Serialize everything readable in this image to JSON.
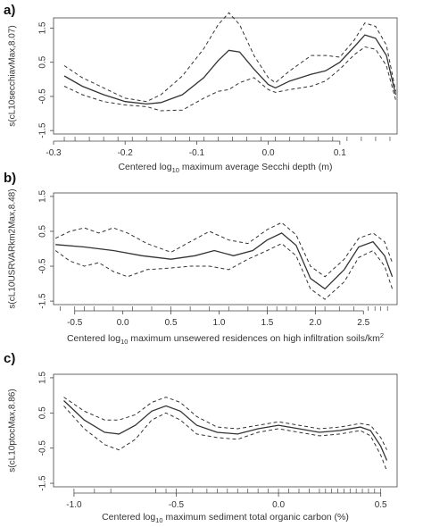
{
  "chart_data": [
    {
      "type": "line",
      "panel_label": "a)",
      "xlabel_parts": {
        "pre": "Centered log",
        "sub": "10",
        "post": " maximum average Secchi depth (m)"
      },
      "ylabel": "s(cL10secchiavMax,8.07)",
      "xlim": [
        -0.3,
        0.18
      ],
      "ylim": [
        -1.6,
        1.8
      ],
      "xticks": [
        -0.3,
        -0.2,
        -0.1,
        0.0,
        0.1
      ],
      "xtick_labels": [
        "-0.3",
        "-0.2",
        "-0.1",
        "0.0",
        "0.1"
      ],
      "yticks": [
        -1.5,
        -0.5,
        0.5,
        1.5
      ],
      "ytick_labels": [
        "-1.5",
        "-0.5",
        "0.5",
        "1.5"
      ],
      "series": [
        {
          "role": "fit",
          "x": [
            -0.285,
            -0.26,
            -0.23,
            -0.2,
            -0.17,
            -0.15,
            -0.12,
            -0.09,
            -0.07,
            -0.055,
            -0.04,
            -0.02,
            0.0,
            0.01,
            0.03,
            0.06,
            0.08,
            0.1,
            0.12,
            0.135,
            0.15,
            0.165,
            0.178
          ],
          "y": [
            0.1,
            -0.2,
            -0.45,
            -0.65,
            -0.72,
            -0.68,
            -0.45,
            0.05,
            0.55,
            0.85,
            0.8,
            0.3,
            -0.15,
            -0.25,
            -0.05,
            0.15,
            0.25,
            0.5,
            0.95,
            1.3,
            1.2,
            0.7,
            -0.45
          ]
        },
        {
          "role": "upper",
          "x": [
            -0.285,
            -0.26,
            -0.23,
            -0.2,
            -0.17,
            -0.15,
            -0.12,
            -0.09,
            -0.07,
            -0.055,
            -0.04,
            -0.02,
            0.0,
            0.01,
            0.03,
            0.06,
            0.08,
            0.1,
            0.12,
            0.135,
            0.15,
            0.165,
            0.178
          ],
          "y": [
            0.4,
            0.05,
            -0.25,
            -0.55,
            -0.65,
            -0.45,
            0.1,
            0.9,
            1.6,
            1.95,
            1.6,
            0.7,
            0.05,
            -0.1,
            0.25,
            0.7,
            0.7,
            0.65,
            1.15,
            1.65,
            1.55,
            1.0,
            -0.35
          ]
        },
        {
          "role": "lower",
          "x": [
            -0.285,
            -0.26,
            -0.23,
            -0.2,
            -0.17,
            -0.15,
            -0.12,
            -0.09,
            -0.07,
            -0.055,
            -0.04,
            -0.02,
            0.0,
            0.01,
            0.03,
            0.06,
            0.08,
            0.1,
            0.12,
            0.135,
            0.15,
            0.165,
            0.178
          ],
          "y": [
            -0.2,
            -0.45,
            -0.65,
            -0.75,
            -0.8,
            -0.92,
            -0.9,
            -0.55,
            -0.35,
            -0.3,
            -0.1,
            0.05,
            -0.3,
            -0.38,
            -0.3,
            -0.2,
            -0.05,
            0.3,
            0.72,
            0.95,
            0.88,
            0.4,
            -0.6
          ]
        }
      ],
      "rug": [
        -0.285,
        -0.27,
        -0.25,
        -0.23,
        -0.21,
        -0.19,
        -0.17,
        -0.15,
        -0.13,
        -0.11,
        -0.09,
        -0.07,
        -0.05,
        -0.03,
        -0.01,
        0.01,
        0.03,
        0.05,
        0.07,
        0.09,
        0.11,
        0.13,
        0.15,
        0.17
      ]
    },
    {
      "type": "line",
      "panel_label": "b)",
      "xlabel_parts": {
        "pre": "Centered log",
        "sub": "10",
        "post": " maximum unsewered residences on high infiltration soils/km",
        "sup": "2"
      },
      "ylabel": "s(cL10USRVARkm2Max,8.48)",
      "xlim": [
        -0.72,
        2.85
      ],
      "ylim": [
        -1.6,
        1.6
      ],
      "xticks": [
        -0.5,
        0.0,
        0.5,
        1.0,
        1.5,
        2.0,
        2.5
      ],
      "xtick_labels": [
        "-0.5",
        "0.0",
        "0.5",
        "1.0",
        "1.5",
        "2.0",
        "2.5"
      ],
      "yticks": [
        -1.5,
        -0.5,
        0.5,
        1.5
      ],
      "ytick_labels": [
        "-1.5",
        "-0.5",
        "0.5",
        "1.5"
      ],
      "series": [
        {
          "role": "fit",
          "x": [
            -0.7,
            -0.4,
            -0.1,
            0.2,
            0.5,
            0.75,
            0.95,
            1.15,
            1.35,
            1.5,
            1.65,
            1.8,
            1.95,
            2.1,
            2.3,
            2.45,
            2.6,
            2.72,
            2.8
          ],
          "y": [
            0.12,
            0.05,
            -0.05,
            -0.2,
            -0.3,
            -0.2,
            -0.05,
            -0.2,
            -0.05,
            0.25,
            0.45,
            0.1,
            -0.85,
            -1.15,
            -0.6,
            0.05,
            0.2,
            -0.2,
            -0.8
          ]
        },
        {
          "role": "upper",
          "x": [
            -0.7,
            -0.55,
            -0.4,
            -0.25,
            -0.1,
            0.05,
            0.25,
            0.5,
            0.7,
            0.9,
            1.1,
            1.3,
            1.5,
            1.65,
            1.8,
            1.95,
            2.1,
            2.3,
            2.45,
            2.6,
            2.72,
            2.8
          ],
          "y": [
            0.3,
            0.5,
            0.6,
            0.45,
            0.6,
            0.45,
            0.15,
            -0.1,
            0.2,
            0.5,
            0.25,
            0.15,
            0.55,
            0.75,
            0.4,
            -0.5,
            -0.8,
            -0.3,
            0.3,
            0.45,
            0.2,
            -0.4
          ]
        },
        {
          "role": "lower",
          "x": [
            -0.7,
            -0.55,
            -0.4,
            -0.25,
            -0.1,
            0.05,
            0.25,
            0.5,
            0.7,
            0.9,
            1.1,
            1.3,
            1.5,
            1.65,
            1.8,
            1.95,
            2.1,
            2.3,
            2.45,
            2.6,
            2.72,
            2.8
          ],
          "y": [
            -0.05,
            -0.35,
            -0.5,
            -0.4,
            -0.65,
            -0.8,
            -0.6,
            -0.55,
            -0.5,
            -0.5,
            -0.6,
            -0.3,
            -0.05,
            0.15,
            -0.2,
            -1.15,
            -1.45,
            -0.95,
            -0.25,
            -0.05,
            -0.5,
            -1.15
          ]
        }
      ],
      "rug": [
        -0.65,
        -0.5,
        -0.4,
        -0.3,
        -0.1,
        0.1,
        0.3,
        0.5,
        0.7,
        0.9,
        1.1,
        1.3,
        1.5,
        1.6,
        1.7,
        1.8,
        2.0,
        2.1,
        2.25,
        2.4,
        2.55,
        2.62,
        2.68,
        2.75
      ]
    },
    {
      "type": "line",
      "panel_label": "c)",
      "xlabel_parts": {
        "pre": "Centered log",
        "sub": "10",
        "post": " maximum sediment total organic carbon (%)"
      },
      "ylabel": "s(cL10ptocMax,8.86)",
      "xlim": [
        -1.1,
        0.58
      ],
      "ylim": [
        -1.6,
        1.6
      ],
      "xticks": [
        -1.0,
        -0.5,
        0.0,
        0.5
      ],
      "xtick_labels": [
        "-1.0",
        "-0.5",
        "0.0",
        "0.5"
      ],
      "yticks": [
        -1.5,
        -0.5,
        0.5,
        1.5
      ],
      "ytick_labels": [
        "-1.5",
        "-0.5",
        "0.5",
        "1.5"
      ],
      "series": [
        {
          "role": "fit",
          "x": [
            -1.05,
            -0.95,
            -0.85,
            -0.78,
            -0.7,
            -0.62,
            -0.55,
            -0.48,
            -0.4,
            -0.3,
            -0.2,
            -0.1,
            0.0,
            0.1,
            0.2,
            0.3,
            0.4,
            0.45,
            0.5,
            0.53
          ],
          "y": [
            0.85,
            0.3,
            -0.05,
            -0.1,
            0.15,
            0.55,
            0.7,
            0.55,
            0.15,
            -0.05,
            -0.1,
            0.05,
            0.15,
            0.05,
            -0.05,
            0.0,
            0.1,
            0.0,
            -0.45,
            -0.85
          ]
        },
        {
          "role": "upper",
          "x": [
            -1.05,
            -0.95,
            -0.85,
            -0.78,
            -0.7,
            -0.62,
            -0.55,
            -0.48,
            -0.4,
            -0.3,
            -0.2,
            -0.1,
            0.0,
            0.1,
            0.2,
            0.3,
            0.4,
            0.45,
            0.5,
            0.53
          ],
          "y": [
            0.95,
            0.55,
            0.3,
            0.3,
            0.45,
            0.8,
            0.95,
            0.8,
            0.4,
            0.1,
            0.05,
            0.15,
            0.25,
            0.15,
            0.05,
            0.1,
            0.2,
            0.15,
            -0.2,
            -0.55
          ]
        },
        {
          "role": "lower",
          "x": [
            -1.05,
            -0.95,
            -0.85,
            -0.78,
            -0.7,
            -0.62,
            -0.55,
            -0.48,
            -0.4,
            -0.3,
            -0.2,
            -0.1,
            0.0,
            0.1,
            0.2,
            0.3,
            0.4,
            0.45,
            0.5,
            0.53
          ],
          "y": [
            0.7,
            0.05,
            -0.4,
            -0.55,
            -0.25,
            0.3,
            0.5,
            0.3,
            -0.1,
            -0.2,
            -0.25,
            -0.05,
            0.05,
            -0.05,
            -0.15,
            -0.1,
            0.0,
            -0.15,
            -0.7,
            -1.15
          ]
        }
      ],
      "rug": [
        -1.0,
        -0.9,
        -0.82,
        -0.6,
        -0.55,
        -0.5,
        -0.42,
        -0.35,
        -0.3,
        -0.25,
        -0.2,
        -0.15,
        -0.1,
        -0.05,
        0.0,
        0.05,
        0.1,
        0.15,
        0.2,
        0.23,
        0.26,
        0.29,
        0.32,
        0.35,
        0.38,
        0.41,
        0.44,
        0.47,
        0.5
      ]
    }
  ]
}
